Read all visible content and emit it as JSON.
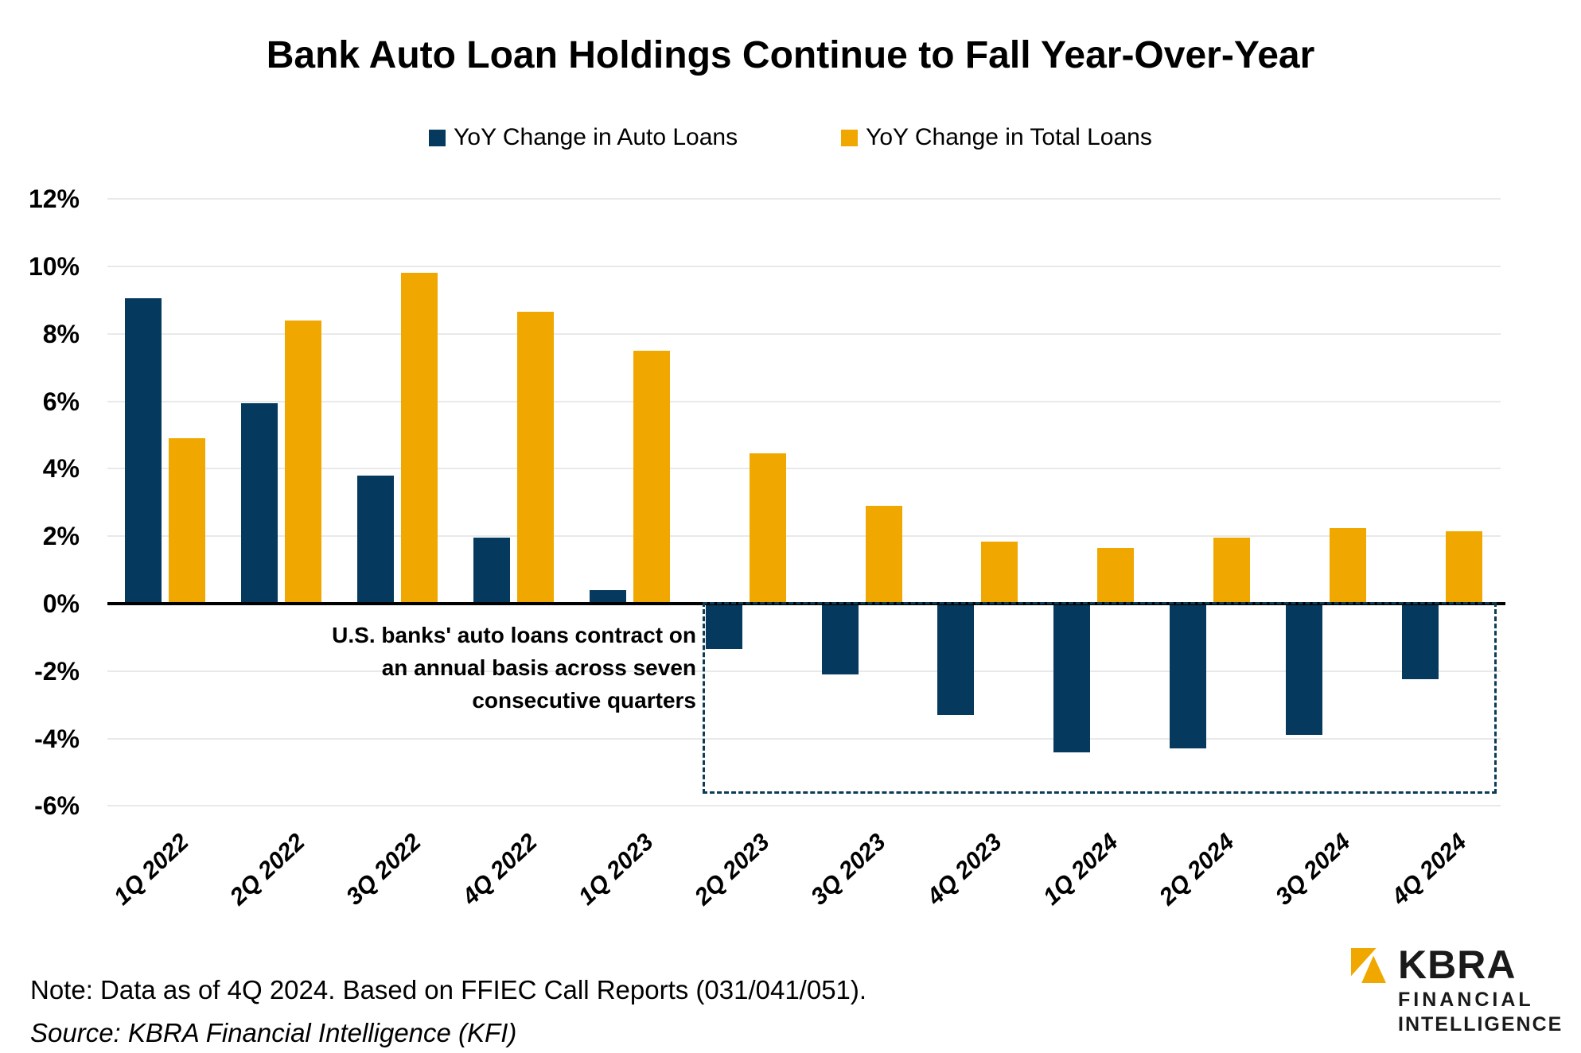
{
  "title": "Bank Auto Loan Holdings Continue to Fall Year-Over-Year",
  "legend": {
    "items": [
      {
        "label": "YoY Change in Auto Loans",
        "color": "#053A5E"
      },
      {
        "label": "YoY Change in Total Loans",
        "color": "#F0A800"
      }
    ]
  },
  "chart_data": {
    "type": "bar",
    "categories": [
      "1Q 2022",
      "2Q 2022",
      "3Q 2022",
      "4Q 2022",
      "1Q 2023",
      "2Q 2023",
      "3Q 2023",
      "4Q 2023",
      "1Q 2024",
      "2Q 2024",
      "3Q 2024",
      "4Q 2024"
    ],
    "series": [
      {
        "name": "YoY Change in Auto Loans",
        "color": "#053A5E",
        "values": [
          9.05,
          5.95,
          3.8,
          1.95,
          0.4,
          -1.35,
          -2.1,
          -3.3,
          -4.4,
          -4.3,
          -3.9,
          -2.25
        ]
      },
      {
        "name": "YoY Change in Total Loans",
        "color": "#F0A800",
        "values": [
          4.9,
          8.4,
          9.8,
          8.65,
          7.5,
          4.45,
          2.9,
          1.85,
          1.65,
          1.95,
          2.25,
          2.15
        ]
      }
    ],
    "y_ticks": [
      {
        "label": "12%",
        "value": 12
      },
      {
        "label": "10%",
        "value": 10
      },
      {
        "label": "8%",
        "value": 8
      },
      {
        "label": "6%",
        "value": 6
      },
      {
        "label": "4%",
        "value": 4
      },
      {
        "label": "2%",
        "value": 2
      },
      {
        "label": "0%",
        "value": 0
      },
      {
        "label": "-2%",
        "value": -2
      },
      {
        "label": "-4%",
        "value": -4
      },
      {
        "label": "-6%",
        "value": -6
      }
    ],
    "ylim": [
      -6,
      12
    ],
    "grid": true,
    "legend_position": "top",
    "title": "Bank Auto Loan Holdings Continue to Fall Year-Over-Year",
    "xlabel": "",
    "ylabel": "",
    "highlight_box": {
      "from_category": "2Q 2023",
      "to_category": "4Q 2024",
      "top_value": 0,
      "bottom_value": -5.5,
      "style": "dashed",
      "color": "#0B3B55"
    }
  },
  "annotation": {
    "lines": [
      "U.S. banks' auto loans contract on",
      "an annual basis across seven",
      "consecutive quarters"
    ]
  },
  "notes": {
    "note": "Note: Data as of 4Q 2024. Based on FFIEC Call Reports (031/041/051).",
    "source": "Source: KBRA Financial Intelligence (KFI)"
  },
  "logo": {
    "brand": "KBRA",
    "line1": "FINANCIAL",
    "line2": "INTELLIGENCE",
    "mark_color": "#F0A800"
  }
}
